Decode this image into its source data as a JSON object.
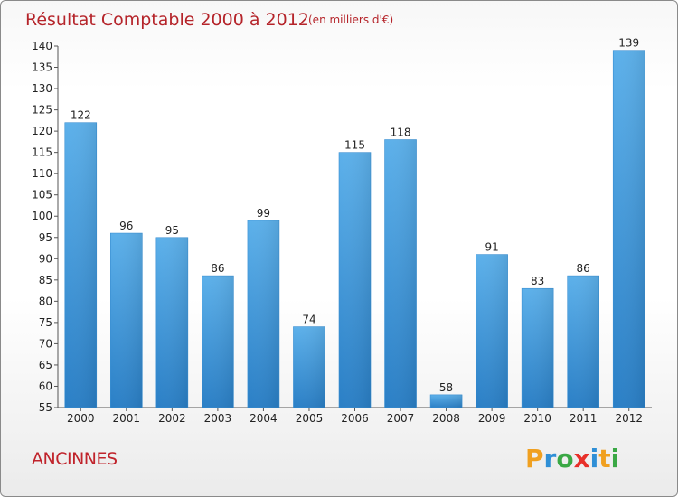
{
  "chart_data": {
    "type": "bar",
    "title": "Résultat Comptable 2000 à 2012",
    "subtitle": "(en milliers d'€)",
    "categories": [
      "2000",
      "2001",
      "2002",
      "2003",
      "2004",
      "2005",
      "2006",
      "2007",
      "2008",
      "2009",
      "2010",
      "2011",
      "2012"
    ],
    "values": [
      122,
      96,
      95,
      86,
      99,
      74,
      115,
      118,
      58,
      91,
      83,
      86,
      139
    ],
    "xlabel": "",
    "ylabel": "",
    "ylim": [
      55,
      140
    ],
    "yticks": [
      55,
      60,
      65,
      70,
      75,
      80,
      85,
      90,
      95,
      100,
      105,
      110,
      115,
      120,
      125,
      130,
      135,
      140
    ],
    "grid": false,
    "bar_color": "#4a9de0"
  },
  "place_name": "ANCINNES",
  "logo": {
    "text": "Proxiti",
    "letters": [
      "P",
      "r",
      "o",
      "x",
      "i",
      "t",
      "i"
    ],
    "colors": [
      "#f0a020",
      "#2f8fd6",
      "#3aa845",
      "#e8302a",
      "#2f8fd6",
      "#f0a020",
      "#3aa845"
    ]
  }
}
